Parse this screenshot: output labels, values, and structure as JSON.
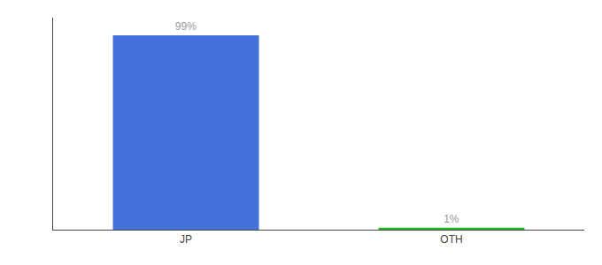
{
  "chart_data": {
    "type": "bar",
    "categories": [
      "JP",
      "OTH"
    ],
    "values": [
      99,
      1
    ],
    "value_labels": [
      "99%",
      "1%"
    ],
    "data_labels": true,
    "colors": [
      "#4472db",
      "#22bb22"
    ],
    "ylim": [
      0,
      108
    ],
    "grid": false,
    "tick_labels": "x"
  }
}
